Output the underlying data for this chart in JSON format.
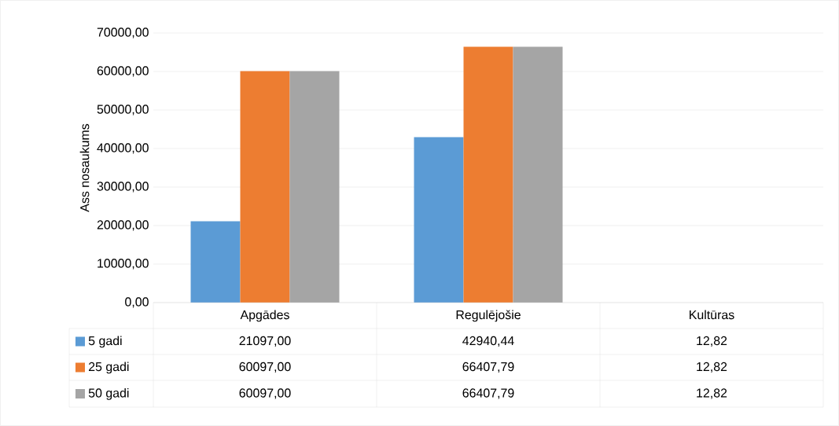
{
  "chart_data": {
    "type": "bar",
    "ylabel": "Ass nosaukums",
    "categories": [
      "Apgādes",
      "Regulējošie",
      "Kultūras"
    ],
    "series": [
      {
        "name": "5 gadi",
        "color": "#5b9bd5",
        "values": [
          21097.0,
          42940.44,
          12.82
        ],
        "value_labels": [
          "21097,00",
          "42940,44",
          "12,82"
        ]
      },
      {
        "name": "25 gadi",
        "color": "#ed7d31",
        "values": [
          60097.0,
          66407.79,
          12.82
        ],
        "value_labels": [
          "60097,00",
          "66407,79",
          "12,82"
        ]
      },
      {
        "name": "50 gadi",
        "color": "#a5a5a5",
        "values": [
          60097.0,
          66407.79,
          12.82
        ],
        "value_labels": [
          "60097,00",
          "66407,79",
          "12,82"
        ]
      }
    ],
    "ylim": [
      0,
      70000
    ],
    "yticks": [
      {
        "value": 0,
        "label": "0,00"
      },
      {
        "value": 10000,
        "label": "10000,00"
      },
      {
        "value": 20000,
        "label": "20000,00"
      },
      {
        "value": 30000,
        "label": "30000,00"
      },
      {
        "value": 40000,
        "label": "40000,00"
      },
      {
        "value": 50000,
        "label": "50000,00"
      },
      {
        "value": 60000,
        "label": "60000,00"
      },
      {
        "value": 70000,
        "label": "70000,00"
      }
    ],
    "grid": "y",
    "legend": "bottom left"
  }
}
